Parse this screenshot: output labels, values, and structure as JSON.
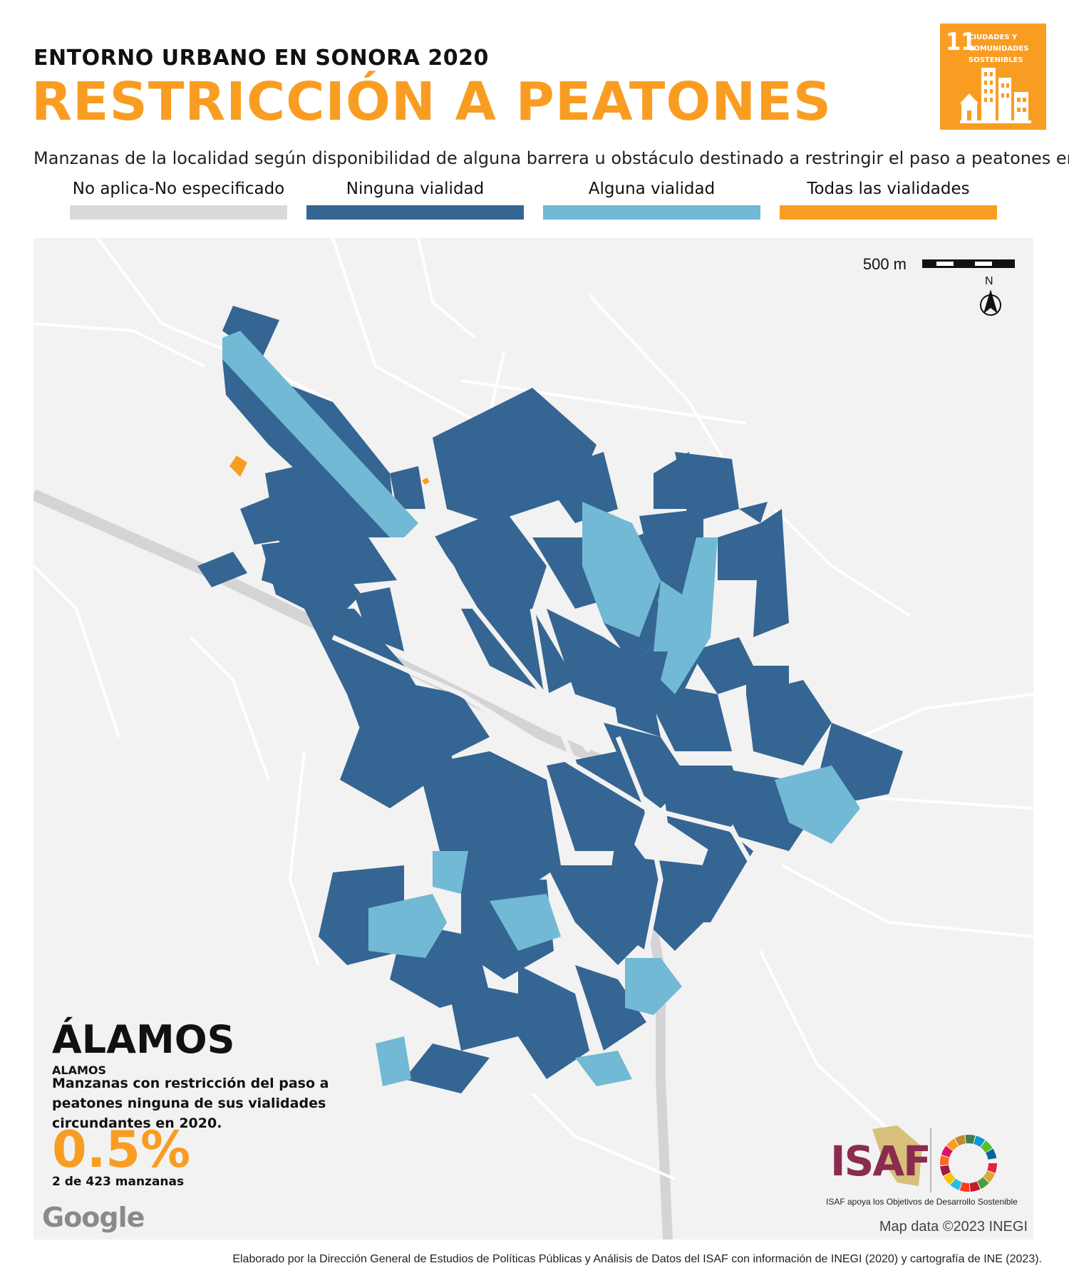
{
  "header": {
    "kicker": "ENTORNO URBANO EN SONORA 2020",
    "title": "RESTRICCIÓN A PEATONES",
    "subtitle": "Manzanas de la localidad según disponibilidad de alguna barrera u obstáculo destinado a restringir el paso a peatones en sus vialidades"
  },
  "legend": [
    {
      "label": "No aplica-No especificado",
      "color": "#d9d9d9"
    },
    {
      "label": "Ninguna vialidad",
      "color": "#356592"
    },
    {
      "label": "Alguna vialidad",
      "color": "#71b9d4"
    },
    {
      "label": "Todas las vialidades",
      "color": "#f99d22"
    }
  ],
  "sdg_badge": {
    "number": "11",
    "text": "CIUDADES Y COMUNIDADES SOSTENIBLES",
    "color": "#f99d22"
  },
  "map": {
    "scale_label": "500 m",
    "north_label": "N",
    "attribution": "Map data ©2023 INEGI",
    "provider": "Google"
  },
  "locality": {
    "name": "ÁLAMOS",
    "subname": "ALAMOS",
    "description": "Manzanas con restricción del paso a peatones ninguna de sus vialidades circundantes en 2020.",
    "percentage": "0.5%",
    "count_text": "2 de 423 manzanas"
  },
  "logos": {
    "isaf_text": "ISAF",
    "isaf_tagline": "ISAF apoya los Objetivos de Desarrollo Sostenible"
  },
  "footer": "Elaborado por la Dirección General de Estudios de Políticas Públicas y Análisis de Datos del ISAF con información de INEGI (2020) y cartografía de INE (2023)."
}
